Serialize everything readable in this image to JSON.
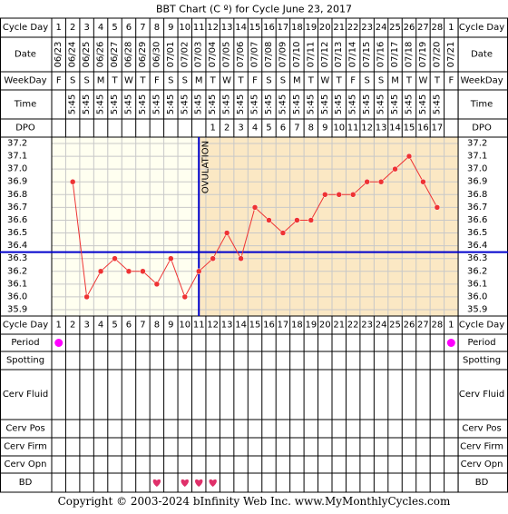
{
  "chart_data": {
    "type": "line",
    "title": "BBT Chart (C º) for Cycle June 23, 2017",
    "row_labels": {
      "cycle_day": "Cycle Day",
      "date": "Date",
      "weekday": "WeekDay",
      "time": "Time",
      "dpo": "DPO",
      "period": "Period",
      "spotting": "Spotting",
      "cerv_fluid": "Cerv Fluid",
      "cerv_pos": "Cerv Pos",
      "cerv_firm": "Cerv Firm",
      "cerv_opn": "Cerv Opn",
      "bd": "BD"
    },
    "cycle_days": [
      "1",
      "2",
      "3",
      "4",
      "5",
      "6",
      "7",
      "8",
      "9",
      "10",
      "11",
      "12",
      "13",
      "14",
      "15",
      "16",
      "17",
      "18",
      "19",
      "20",
      "21",
      "22",
      "23",
      "24",
      "25",
      "26",
      "27",
      "28",
      "1"
    ],
    "dates": [
      "06/23",
      "06/24",
      "06/25",
      "06/26",
      "06/27",
      "06/28",
      "06/29",
      "06/30",
      "07/01",
      "07/02",
      "07/03",
      "07/04",
      "07/05",
      "07/06",
      "07/07",
      "07/08",
      "07/09",
      "07/10",
      "07/11",
      "07/12",
      "07/13",
      "07/14",
      "07/15",
      "07/16",
      "07/17",
      "07/18",
      "07/19",
      "07/20",
      "07/21"
    ],
    "weekdays": [
      "F",
      "S",
      "S",
      "M",
      "T",
      "W",
      "T",
      "F",
      "S",
      "S",
      "M",
      "T",
      "W",
      "T",
      "F",
      "S",
      "S",
      "M",
      "T",
      "W",
      "T",
      "F",
      "S",
      "S",
      "M",
      "T",
      "W",
      "T",
      "F"
    ],
    "times": [
      "",
      "5:45",
      "5:45",
      "5:45",
      "5:45",
      "5:45",
      "5:45",
      "5:45",
      "5:45",
      "5:45",
      "5:45",
      "5:45",
      "5:45",
      "5:45",
      "5:45",
      "5:45",
      "5:45",
      "5:45",
      "5:45",
      "5:45",
      "5:45",
      "5:45",
      "5:45",
      "5:45",
      "5:45",
      "5:45",
      "5:45",
      "5:45",
      ""
    ],
    "dpo": [
      "",
      "",
      "",
      "",
      "",
      "",
      "",
      "",
      "",
      "",
      "",
      "1",
      "2",
      "3",
      "4",
      "5",
      "6",
      "7",
      "8",
      "9",
      "10",
      "11",
      "12",
      "13",
      "14",
      "15",
      "16",
      "17",
      ""
    ],
    "y_ticks": [
      "37.2",
      "37.1",
      "37.0",
      "36.9",
      "36.8",
      "36.7",
      "36.6",
      "36.5",
      "36.4",
      "36.3",
      "36.2",
      "36.1",
      "36.0",
      "35.9"
    ],
    "ylim": [
      35.9,
      37.2
    ],
    "temps": [
      null,
      36.9,
      36.0,
      36.2,
      36.3,
      36.2,
      36.2,
      36.1,
      36.3,
      36.0,
      36.2,
      36.3,
      36.5,
      36.3,
      36.7,
      36.6,
      36.5,
      36.6,
      36.6,
      36.8,
      36.8,
      36.8,
      36.9,
      36.9,
      37.0,
      37.1,
      36.9,
      36.7,
      null
    ],
    "coverline": 36.35,
    "ovulation_day_index": 10,
    "ovulation_label": "OVULATION",
    "period_days": [
      0,
      28
    ],
    "bd_days": [
      7,
      9,
      10,
      11
    ],
    "colors": {
      "line": "#ee3333",
      "marker": "#ee3333",
      "coverline": "#0000cc",
      "ovulation": "#0000cc",
      "pre_ovulation_bg": "#fffff0",
      "post_ovulation_bg": "#fbe8c4",
      "period_dot": "#ff00ff",
      "heart": "#e0306a",
      "grid": "#c8c8c8"
    }
  },
  "footer": "Copyright © 2003-2024 bInfinity Web Inc.    www.MyMonthlyCycles.com"
}
